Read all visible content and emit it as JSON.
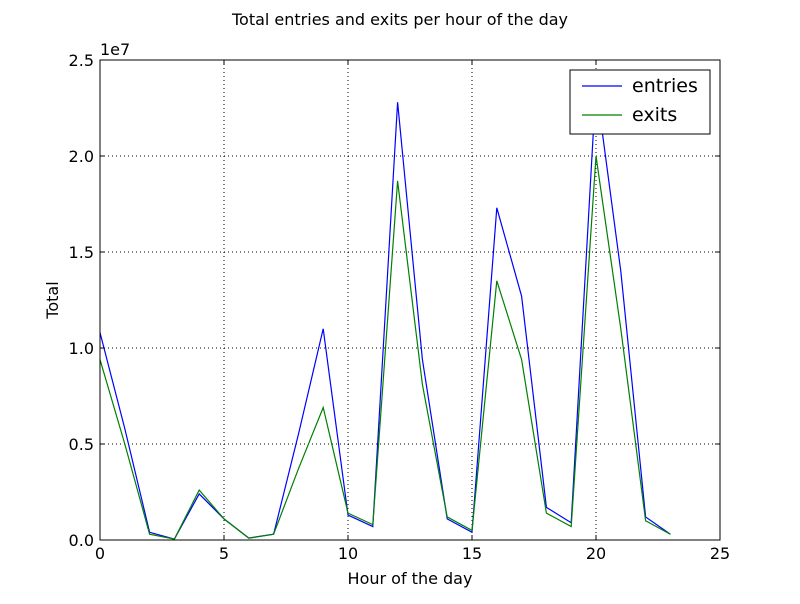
{
  "chart_data": {
    "type": "line",
    "title": "Total entries and exits per hour of the day",
    "xlabel": "Hour of the day",
    "ylabel": "Total",
    "y_offset_text": "1e7",
    "xlim": [
      0,
      25
    ],
    "ylim": [
      0,
      2.5
    ],
    "y_scale_multiplier": 10000000,
    "xticks": [
      0,
      5,
      10,
      15,
      20,
      25
    ],
    "xtick_labels": [
      "0",
      "5",
      "10",
      "15",
      "20",
      "25"
    ],
    "yticks": [
      0,
      0.5,
      1.0,
      1.5,
      2.0,
      2.5
    ],
    "ytick_labels": [
      "0.0",
      "0.5",
      "1.0",
      "1.5",
      "2.0",
      "2.5"
    ],
    "grid": true,
    "legend_position": "top-right",
    "x": [
      0,
      1,
      2,
      3,
      4,
      5,
      6,
      7,
      8,
      9,
      10,
      11,
      12,
      13,
      14,
      15,
      16,
      17,
      18,
      19,
      20,
      21,
      22,
      23
    ],
    "series": [
      {
        "name": "entries",
        "color": "#0000ff",
        "values": [
          1.08,
          0.58,
          0.04,
          0.005,
          0.24,
          0.11,
          0.01,
          0.03,
          0.55,
          1.1,
          0.13,
          0.07,
          2.28,
          0.94,
          0.11,
          0.04,
          1.73,
          1.27,
          0.17,
          0.09,
          2.37,
          1.4,
          0.12,
          0.03
        ]
      },
      {
        "name": "exits",
        "color": "#008000",
        "values": [
          0.94,
          0.5,
          0.03,
          0.005,
          0.26,
          0.11,
          0.01,
          0.03,
          0.37,
          0.69,
          0.14,
          0.08,
          1.87,
          0.81,
          0.12,
          0.05,
          1.35,
          0.94,
          0.14,
          0.07,
          2.0,
          1.1,
          0.1,
          0.03
        ]
      }
    ]
  }
}
